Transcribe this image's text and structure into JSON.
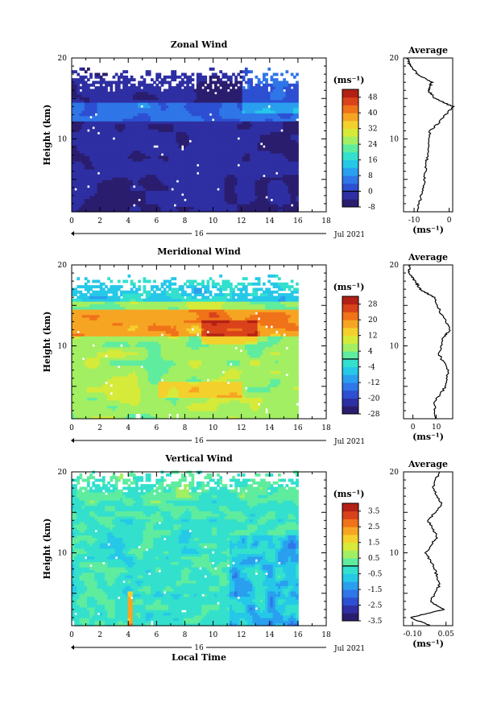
{
  "chart_data": [
    {
      "type": "heatmap",
      "title": "Zonal Wind",
      "ylabel": "Height (km)",
      "xlabel": "",
      "xlim": [
        0,
        18
      ],
      "ylim": [
        1,
        20
      ],
      "xticks": [
        "0",
        "2",
        "4",
        "6",
        "8",
        "10",
        "12",
        "14",
        "16",
        "18"
      ],
      "yticks": [
        "10",
        "20"
      ],
      "date_label": "16",
      "month_label": "Jul 2021",
      "unit": "(ms⁻¹)",
      "colorbar": {
        "ticks": [
          "48",
          "40",
          "32",
          "24",
          "16",
          "8",
          "0",
          "-8"
        ],
        "min": -8,
        "max": 52
      },
      "average": {
        "title": "Average",
        "unit": "(ms⁻¹)",
        "xticks": [
          "-10",
          "0"
        ],
        "xlim": [
          -13,
          1
        ],
        "points": [
          [
            -9,
            1
          ],
          [
            -8,
            3
          ],
          [
            -7,
            5
          ],
          [
            -6.5,
            7
          ],
          [
            -6,
            9
          ],
          [
            -5.5,
            11
          ],
          [
            -3,
            12
          ],
          [
            1,
            14
          ],
          [
            -4,
            15
          ],
          [
            -6,
            16
          ],
          [
            -5,
            17
          ],
          [
            -9,
            18
          ],
          [
            -11,
            19
          ],
          [
            -12,
            20
          ]
        ]
      }
    },
    {
      "type": "heatmap",
      "title": "Meridional Wind",
      "ylabel": "Height (km)",
      "xlabel": "",
      "xlim": [
        0,
        18
      ],
      "ylim": [
        1,
        20
      ],
      "xticks": [
        "0",
        "2",
        "4",
        "6",
        "8",
        "10",
        "12",
        "14",
        "16",
        "18"
      ],
      "yticks": [
        "10",
        "20"
      ],
      "date_label": "16",
      "month_label": "Jul 2021",
      "unit": "(ms⁻¹)",
      "colorbar": {
        "ticks": [
          "28",
          "20",
          "12",
          "4",
          "-4",
          "-12",
          "-20",
          "-28"
        ],
        "min": -28,
        "max": 32
      },
      "average": {
        "title": "Average",
        "unit": "(ms⁻¹)",
        "xticks": [
          "0",
          "10"
        ],
        "xlim": [
          -4,
          17
        ],
        "points": [
          [
            10,
            1
          ],
          [
            9,
            3
          ],
          [
            14,
            5
          ],
          [
            15,
            7
          ],
          [
            11,
            9
          ],
          [
            13,
            11
          ],
          [
            16,
            12
          ],
          [
            12,
            14
          ],
          [
            9,
            16
          ],
          [
            3,
            17
          ],
          [
            1,
            18
          ],
          [
            -2,
            19
          ],
          [
            -1,
            20
          ]
        ]
      }
    },
    {
      "type": "heatmap",
      "title": "Vertical Wind",
      "ylabel": "Height (km)",
      "xlabel": "Local Time",
      "xlim": [
        0,
        18
      ],
      "ylim": [
        1,
        20
      ],
      "xticks": [
        "0",
        "2",
        "4",
        "6",
        "8",
        "10",
        "12",
        "14",
        "16",
        "18"
      ],
      "yticks": [
        "10",
        "20"
      ],
      "date_label": "16",
      "month_label": "Jul 2021",
      "unit": "(ms⁻¹)",
      "colorbar": {
        "ticks": [
          "3.5",
          "2.5",
          "1.5",
          "0.5",
          "-0.5",
          "-1.5",
          "-2.5",
          "-3.5"
        ],
        "min": -3.5,
        "max": 4
      },
      "average": {
        "title": "Average",
        "unit": "(ms⁻¹)",
        "xticks": [
          "-0.10",
          "0.05"
        ],
        "xlim": [
          -0.14,
          0.08
        ],
        "points": [
          [
            -0.02,
            1
          ],
          [
            -0.11,
            2
          ],
          [
            0.04,
            3
          ],
          [
            -0.02,
            4
          ],
          [
            0.02,
            6
          ],
          [
            0.0,
            8
          ],
          [
            -0.04,
            10
          ],
          [
            0.01,
            12
          ],
          [
            -0.03,
            14
          ],
          [
            0.03,
            16
          ],
          [
            -0.01,
            18
          ],
          [
            0.02,
            20
          ]
        ]
      }
    }
  ],
  "colors": {
    "palette": [
      "#2b1d6e",
      "#2e2fa3",
      "#2d4fd2",
      "#2f76e8",
      "#2a9fef",
      "#26c8e8",
      "#33e0cd",
      "#5fec9f",
      "#a2ef63",
      "#d6ea3a",
      "#f4d02c",
      "#f6a523",
      "#f07219",
      "#d9421a",
      "#b32015"
    ]
  }
}
